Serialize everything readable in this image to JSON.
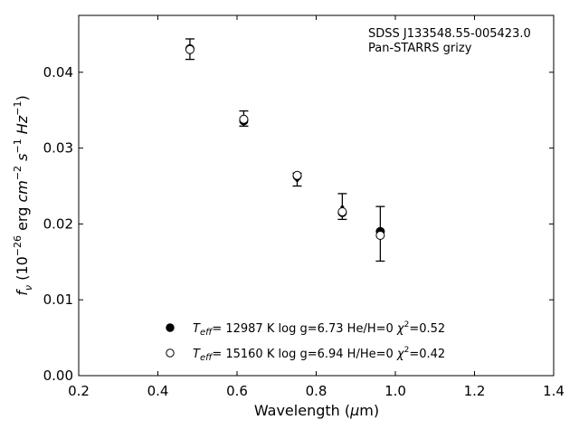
{
  "chart_data": {
    "type": "scatter",
    "x_label": "Wavelength (μm)",
    "y_label": "fν (10⁻²⁶ erg cm⁻² s⁻¹ Hz⁻¹)",
    "xlim": [
      0.2,
      1.4
    ],
    "ylim": [
      0.0,
      0.0475
    ],
    "x_ticks": [
      0.2,
      0.4,
      0.6,
      0.8,
      1.0,
      1.2,
      1.4
    ],
    "x_tick_labels": [
      "0.2",
      "0.4",
      "0.6",
      "0.8",
      "1.0",
      "1.2",
      "1.4"
    ],
    "y_ticks": [
      0.0,
      0.01,
      0.02,
      0.03,
      0.04
    ],
    "y_tick_labels": [
      "0.00",
      "0.01",
      "0.02",
      "0.03",
      "0.04"
    ],
    "grid": false,
    "annotation": [
      "SDSS J133548.55-005423.0",
      "Pan-STARRS grizy"
    ],
    "observed": {
      "x": [
        0.481,
        0.617,
        0.752,
        0.866,
        0.962
      ],
      "y": [
        0.043,
        0.0337,
        0.0258,
        0.0222,
        0.0187
      ],
      "err_low": [
        0.0417,
        0.0329,
        0.025,
        0.0206,
        0.0151
      ],
      "err_high": [
        0.0444,
        0.0349,
        0.0267,
        0.024,
        0.0223
      ]
    },
    "series": [
      {
        "marker": "filled-circle",
        "color": "#000000",
        "x": [
          0.481,
          0.617,
          0.752,
          0.866,
          0.962
        ],
        "y": [
          0.0431,
          0.0336,
          0.0263,
          0.0215,
          0.019
        ],
        "legend": {
          "teff_value": "= 12987 K",
          "logg": "log g=6.73",
          "comp": "He/H=0",
          "chi_value": "=0.52"
        }
      },
      {
        "marker": "open-circle",
        "color": "#000000",
        "x": [
          0.481,
          0.617,
          0.752,
          0.866,
          0.962
        ],
        "y": [
          0.043,
          0.0338,
          0.0264,
          0.0216,
          0.0185
        ],
        "legend": {
          "teff_value": "= 15160 K",
          "logg": "log g=6.94",
          "comp": "H/He=0",
          "chi_value": "=0.42"
        }
      }
    ],
    "legend_location": "lower-center"
  }
}
